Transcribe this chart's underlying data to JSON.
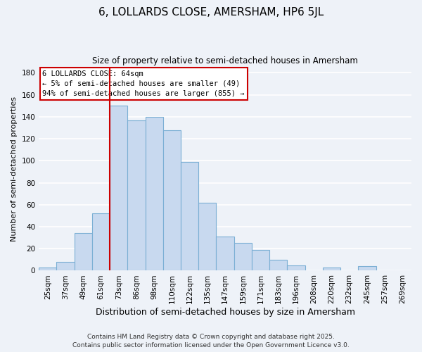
{
  "title": "6, LOLLARDS CLOSE, AMERSHAM, HP6 5JL",
  "subtitle": "Size of property relative to semi-detached houses in Amersham",
  "xlabel": "Distribution of semi-detached houses by size in Amersham",
  "ylabel": "Number of semi-detached properties",
  "bin_labels": [
    "25sqm",
    "37sqm",
    "49sqm",
    "61sqm",
    "73sqm",
    "86sqm",
    "98sqm",
    "110sqm",
    "122sqm",
    "135sqm",
    "147sqm",
    "159sqm",
    "171sqm",
    "183sqm",
    "196sqm",
    "208sqm",
    "220sqm",
    "232sqm",
    "245sqm",
    "257sqm",
    "269sqm"
  ],
  "bar_heights": [
    3,
    8,
    34,
    52,
    150,
    137,
    140,
    128,
    99,
    62,
    31,
    25,
    19,
    10,
    5,
    0,
    3,
    0,
    4,
    0,
    0
  ],
  "bar_color": "#c8d9ef",
  "bar_edge_color": "#7bafd4",
  "vline_x_index": 3.5,
  "vline_color": "#cc0000",
  "annotation_title": "6 LOLLARDS CLOSE: 64sqm",
  "annotation_line1": "← 5% of semi-detached houses are smaller (49)",
  "annotation_line2": "94% of semi-detached houses are larger (855) →",
  "annotation_box_color": "#ffffff",
  "annotation_box_edge": "#cc0000",
  "footer1": "Contains HM Land Registry data © Crown copyright and database right 2025.",
  "footer2": "Contains public sector information licensed under the Open Government Licence v3.0.",
  "ylim": [
    0,
    185
  ],
  "yticks": [
    0,
    20,
    40,
    60,
    80,
    100,
    120,
    140,
    160,
    180
  ],
  "bg_color": "#eef2f8",
  "grid_color": "#ffffff",
  "title_fontsize": 11,
  "subtitle_fontsize": 8.5,
  "xlabel_fontsize": 9,
  "ylabel_fontsize": 8,
  "tick_fontsize": 7.5,
  "footer_fontsize": 6.5,
  "annot_fontsize": 7.5
}
